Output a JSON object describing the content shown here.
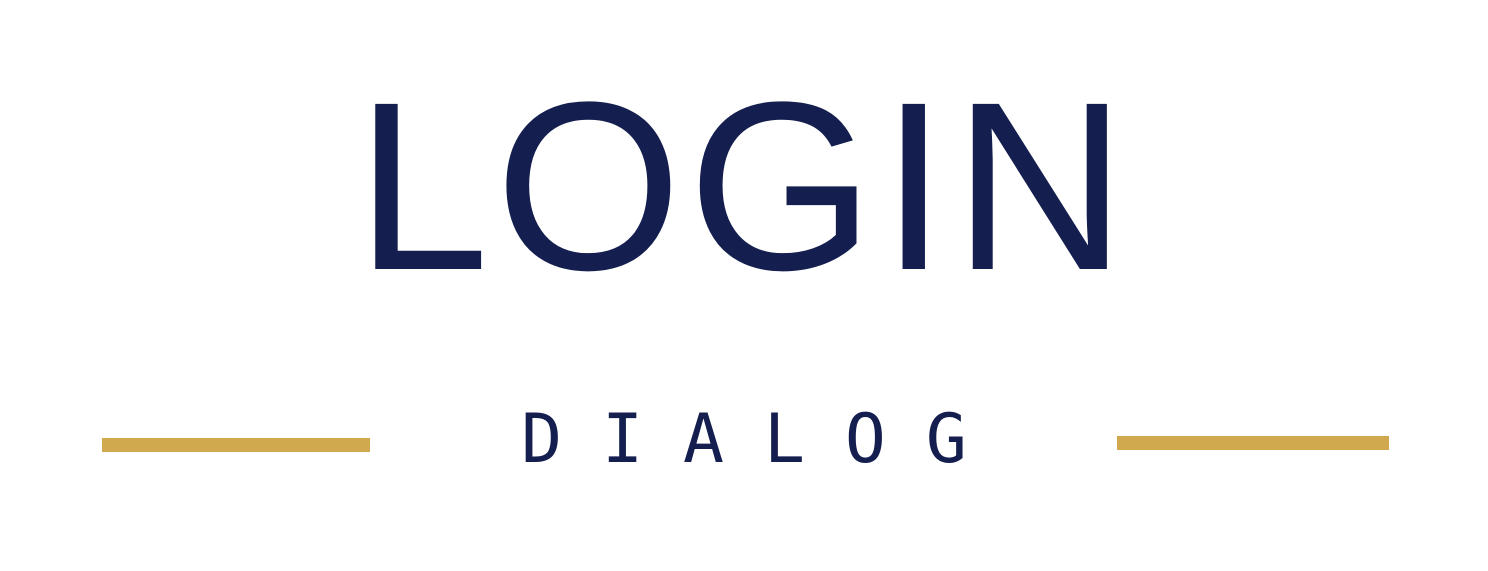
{
  "logo": {
    "title": "LOGIN",
    "subtitle": "DIALOG",
    "colors": {
      "text": "#141e4f",
      "accent": "#d0a94f",
      "background": "#ffffff"
    }
  }
}
